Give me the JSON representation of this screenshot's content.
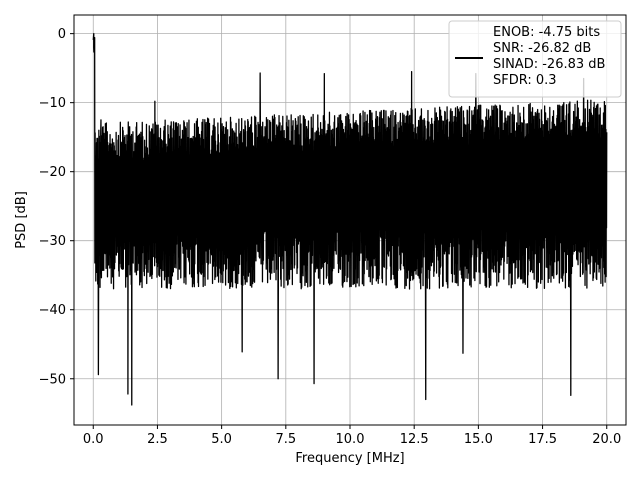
{
  "chart_data": {
    "type": "line",
    "title": "",
    "xlabel": "Frequency [MHz]",
    "ylabel": "PSD [dB]",
    "xlim": [
      -0.75,
      20.75
    ],
    "ylim": [
      -56.7,
      2.7
    ],
    "x_ticks": [
      0.0,
      2.5,
      5.0,
      7.5,
      10.0,
      12.5,
      15.0,
      17.5,
      20.0
    ],
    "x_tick_labels": [
      "0.0",
      "2.5",
      "5.0",
      "7.5",
      "10.0",
      "12.5",
      "15.0",
      "17.5",
      "20.0"
    ],
    "y_ticks": [
      0,
      -10,
      -20,
      -30,
      -40,
      -50
    ],
    "y_tick_labels": [
      "0",
      "−10",
      "−20",
      "−30",
      "−40",
      "−50"
    ],
    "grid": true,
    "legend_position": "top-right",
    "series": [
      {
        "name": "ENOB: -4.75 bits\nSNR: -26.82 dB\nSINAD: -26.83 dB\nSFDR: 0.3",
        "color": "#000000",
        "x_range": [
          0.0,
          20.0
        ],
        "peak": {
          "x": 0.02,
          "y": 0.0
        },
        "upper_envelope_start": -13.0,
        "upper_envelope_end": -9.5,
        "typical_min": -34.0,
        "selected_spikes_top": [
          {
            "x": 0.3,
            "y": -12.5
          },
          {
            "x": 2.4,
            "y": -9.8
          },
          {
            "x": 6.5,
            "y": -5.7
          },
          {
            "x": 9.0,
            "y": -5.8
          },
          {
            "x": 12.4,
            "y": -5.5
          },
          {
            "x": 14.9,
            "y": -5.8
          },
          {
            "x": 19.1,
            "y": -6.5
          }
        ],
        "selected_spikes_bottom": [
          {
            "x": 0.2,
            "y": -49.4
          },
          {
            "x": 1.35,
            "y": -52.2
          },
          {
            "x": 1.5,
            "y": -53.8
          },
          {
            "x": 5.8,
            "y": -46.1
          },
          {
            "x": 7.2,
            "y": -50.0
          },
          {
            "x": 8.6,
            "y": -50.7
          },
          {
            "x": 12.95,
            "y": -53.0
          },
          {
            "x": 14.4,
            "y": -46.3
          },
          {
            "x": 18.6,
            "y": -52.4
          }
        ]
      }
    ]
  }
}
